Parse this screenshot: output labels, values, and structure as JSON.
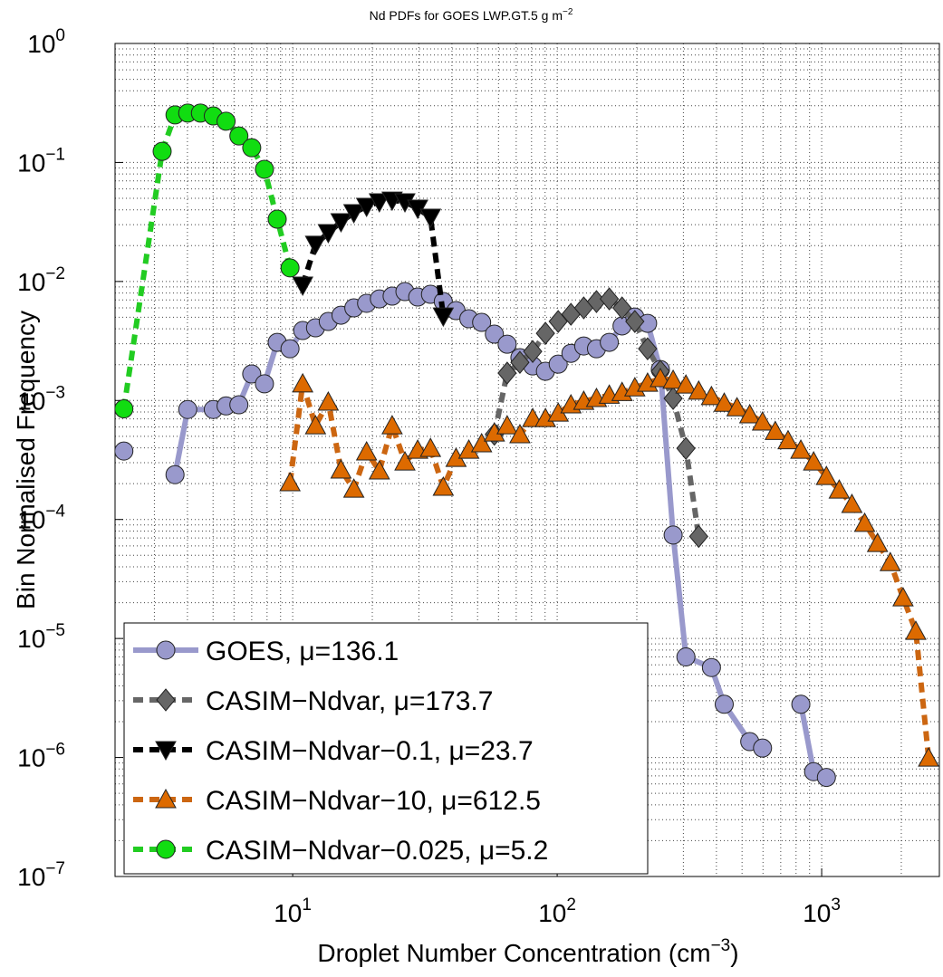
{
  "chart_data": {
    "type": "line",
    "title": "Nd PDFs for GOES LWP.GT.5 g m",
    "title_sup": "−2",
    "xlabel": "Droplet Number Concentration (cm",
    "xlabel_sup": "−3",
    "xlabel_end": ")",
    "ylabel": "Bin Normalised Frequency",
    "xscale": "log",
    "yscale": "log",
    "grid": true,
    "legend": "lower left",
    "xlim": [
      2.13,
      2786
    ],
    "ylim": [
      1e-07,
      1
    ],
    "xticks": [
      {
        "value": 10,
        "label": "10",
        "sup": "1"
      },
      {
        "value": 100,
        "label": "10",
        "sup": "2"
      },
      {
        "value": 1000,
        "label": "10",
        "sup": "3"
      }
    ],
    "yticks": [
      {
        "value": 1e-07,
        "label": "10",
        "sup": "−7"
      },
      {
        "value": 1e-06,
        "label": "10",
        "sup": "−6"
      },
      {
        "value": 1e-05,
        "label": "10",
        "sup": "−5"
      },
      {
        "value": 0.0001,
        "label": "10",
        "sup": "−4"
      },
      {
        "value": 0.001,
        "label": "10",
        "sup": "−3"
      },
      {
        "value": 0.01,
        "label": "10",
        "sup": "−2"
      },
      {
        "value": 0.1,
        "label": "10",
        "sup": "−1"
      },
      {
        "value": 1,
        "label": "10",
        "sup": "0"
      }
    ],
    "series": [
      {
        "name": "GOES, μ=136.1",
        "color": "#9999cc",
        "marker_color": "#9999cc",
        "linestyle": "solid",
        "marker": "circle",
        "x": [
          2.3,
          null,
          3.59,
          4.01,
          5.01,
          5.6,
          6.26,
          7.0,
          7.82,
          8.74,
          9.77,
          10.91,
          12.2,
          13.63,
          15.23,
          17.03,
          19.03,
          21.27,
          23.77,
          26.57,
          29.69,
          33.19,
          37.1,
          41.46,
          46.34,
          51.8,
          57.88,
          64.69,
          72.29,
          80.8,
          90.28,
          100.9,
          112.7,
          126.0,
          140.8,
          157.4,
          175.9,
          196.6,
          219.7,
          245.5,
          274.4,
          306.7,
          383.0,
          428.1,
          534.6,
          597.5,
          null,
          834.0,
          932.2,
          1042
        ],
        "values": [
          0.000376,
          null,
          0.000238,
          0.00084,
          0.00084,
          0.0009,
          0.00092,
          0.00167,
          0.00138,
          0.00308,
          0.00272,
          0.00387,
          0.00408,
          0.00461,
          0.00521,
          0.006,
          0.00655,
          0.00714,
          0.00753,
          0.00822,
          0.0074,
          0.0078,
          0.00678,
          0.00569,
          0.00486,
          0.00453,
          0.00361,
          0.00297,
          0.00229,
          0.00195,
          0.00176,
          0.00202,
          0.00249,
          0.00287,
          0.00272,
          0.00308,
          0.00423,
          0.00503,
          0.00445,
          0.00182,
          7.4e-05,
          7e-06,
          5.7e-06,
          2.8e-06,
          1.36e-06,
          1.2e-06,
          null,
          2.8e-06,
          7.6e-07,
          6.8e-07
        ]
      },
      {
        "name": "CASIM−Ndvar, μ=173.7",
        "color": "#666666",
        "marker_color": "#666666",
        "linestyle": "dashed",
        "marker": "diamond",
        "x": [
          57.88,
          64.69,
          72.29,
          80.8,
          90.28,
          100.9,
          112.7,
          126.0,
          140.8,
          157.4,
          175.9,
          196.6,
          219.7,
          245.5,
          274.4,
          306.7,
          342.8
        ],
        "values": [
          0.00052,
          0.0017,
          0.00209,
          0.00258,
          0.00367,
          0.00461,
          0.0053,
          0.006,
          0.00678,
          0.00714,
          0.006,
          0.00461,
          0.00272,
          0.00176,
          0.00104,
          0.000396,
          7.2e-05
        ]
      },
      {
        "name": "CASIM−Ndvar−0.1, μ=23.7",
        "color": "#000000",
        "marker_color": "#000000",
        "linestyle": "dashed",
        "marker": "triangle-down",
        "x": [
          10.91,
          12.2,
          13.63,
          15.23,
          17.03,
          19.03,
          21.27,
          23.77,
          26.57,
          29.69,
          33.19,
          37.1
        ],
        "values": [
          0.0093,
          0.0205,
          0.0257,
          0.0317,
          0.0378,
          0.0427,
          0.0466,
          0.0482,
          0.0466,
          0.0412,
          0.0346,
          0.00512
        ]
      },
      {
        "name": "CASIM−Ndvar−10, μ=612.5",
        "color": "#cc6611",
        "marker_color": "#dd6a00",
        "linestyle": "dashed",
        "marker": "triangle-up",
        "x": [
          9.77,
          10.91,
          12.2,
          13.63,
          15.23,
          17.03,
          19.03,
          21.27,
          23.77,
          26.57,
          29.69,
          33.19,
          37.1,
          41.46,
          46.34,
          51.8,
          57.88,
          64.69,
          72.29,
          80.8,
          90.28,
          100.9,
          112.7,
          126.0,
          140.8,
          157.4,
          175.9,
          196.6,
          219.7,
          245.5,
          274.4,
          306.7,
          342.8,
          383.0,
          428.1,
          478.4,
          534.6,
          597.5,
          667.7,
          746.3,
          834.0,
          932.2,
          1042,
          1165,
          1301,
          1454,
          1626,
          1817,
          2031,
          2269,
          2536
        ],
        "values": [
          0.000204,
          0.00138,
          0.000614,
          0.00097,
          0.000261,
          0.00018,
          0.00037,
          0.000256,
          0.000614,
          0.000305,
          0.000383,
          0.000396,
          0.000187,
          0.000327,
          0.000383,
          0.000433,
          0.000534,
          0.000614,
          0.000516,
          0.000706,
          0.000706,
          0.000785,
          0.00092,
          0.000986,
          0.00104,
          0.00111,
          0.00117,
          0.00128,
          0.0014,
          0.00153,
          0.00148,
          0.00135,
          0.0012,
          0.00108,
          0.00095,
          0.00087,
          0.00076,
          0.00066,
          0.00055,
          0.00046,
          0.000383,
          0.000305,
          0.00023,
          0.000177,
          0.000134,
          9.3e-05,
          6.3e-05,
          4.35e-05,
          2.2e-05,
          1.15e-05,
          9.9e-07
        ]
      },
      {
        "name": "CASIM−Ndvar−0.025, μ=5.2",
        "color": "#22cc22",
        "marker_color": "#11dd11",
        "linestyle": "dashed",
        "marker": "circle",
        "x": [
          2.3,
          3.21,
          3.59,
          4.01,
          4.48,
          5.01,
          5.6,
          6.26,
          7.0,
          7.82,
          8.74,
          9.77
        ],
        "values": [
          0.00085,
          0.124,
          0.251,
          0.26,
          0.26,
          0.246,
          0.222,
          0.167,
          0.133,
          0.0876,
          0.0334,
          0.013
        ]
      }
    ]
  }
}
